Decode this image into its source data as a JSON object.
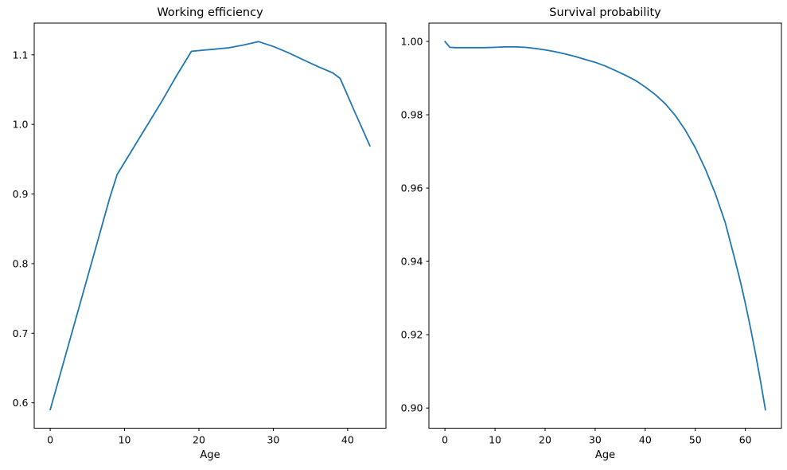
{
  "figure": {
    "background": "#ffffff",
    "text_color": "#000000",
    "spine_color": "#000000"
  },
  "chart_data": [
    {
      "type": "line",
      "title": "Working efficiency",
      "xlabel": "Age",
      "ylabel": "",
      "grid": false,
      "legend": "none",
      "xlim": [
        -2.15,
        45.15
      ],
      "ylim": [
        0.5636,
        1.1455
      ],
      "xticks": {
        "values": [
          0,
          10,
          20,
          30,
          40
        ],
        "labels": [
          "0",
          "10",
          "20",
          "30",
          "40"
        ]
      },
      "yticks": {
        "values": [
          0.6,
          0.7,
          0.8,
          0.9,
          1.0,
          1.1
        ],
        "labels": [
          "0.6",
          "0.7",
          "0.8",
          "0.9",
          "1.0",
          "1.1"
        ]
      },
      "series": [
        {
          "name": "working-efficiency",
          "color": "#1f77b4",
          "x": [
            0,
            2,
            4,
            6,
            8,
            9,
            11,
            13,
            15,
            17,
            19,
            20,
            22,
            24,
            26,
            28,
            30,
            32,
            34,
            36,
            38,
            39,
            41,
            43
          ],
          "y": [
            0.59,
            0.666,
            0.742,
            0.818,
            0.894,
            0.928,
            0.963,
            0.998,
            1.033,
            1.07,
            1.105,
            1.106,
            1.108,
            1.11,
            1.114,
            1.119,
            1.112,
            1.103,
            1.093,
            1.083,
            1.074,
            1.066,
            1.017,
            0.969
          ]
        }
      ]
    },
    {
      "type": "line",
      "title": "Survival probability",
      "xlabel": "Age",
      "ylabel": "",
      "grid": false,
      "legend": "none",
      "xlim": [
        -3.2,
        67.2
      ],
      "ylim": [
        0.8945,
        1.005
      ],
      "xticks": {
        "values": [
          0,
          10,
          20,
          30,
          40,
          50,
          60
        ],
        "labels": [
          "0",
          "10",
          "20",
          "30",
          "40",
          "50",
          "60"
        ]
      },
      "yticks": {
        "values": [
          0.9,
          0.92,
          0.94,
          0.96,
          0.98,
          1.0
        ],
        "labels": [
          "0.90",
          "0.92",
          "0.94",
          "0.96",
          "0.98",
          "1.00"
        ]
      },
      "series": [
        {
          "name": "survival-probability",
          "color": "#1f77b4",
          "x": [
            0,
            1,
            2,
            4,
            6,
            8,
            10,
            12,
            14,
            16,
            18,
            20,
            22,
            24,
            26,
            28,
            30,
            32,
            34,
            36,
            38,
            40,
            42,
            44,
            46,
            48,
            50,
            52,
            54,
            56,
            58,
            59,
            60,
            61,
            62,
            63,
            64
          ],
          "y": [
            1.0,
            0.9984,
            0.9983,
            0.9983,
            0.9983,
            0.9983,
            0.9984,
            0.9985,
            0.9985,
            0.9984,
            0.9981,
            0.9977,
            0.9972,
            0.9966,
            0.9959,
            0.9951,
            0.9943,
            0.9933,
            0.9921,
            0.9908,
            0.9894,
            0.9876,
            0.9855,
            0.983,
            0.9798,
            0.9758,
            0.971,
            0.9652,
            0.9585,
            0.9505,
            0.94,
            0.9345,
            0.9285,
            0.922,
            0.915,
            0.9075,
            0.8995
          ]
        }
      ]
    }
  ]
}
